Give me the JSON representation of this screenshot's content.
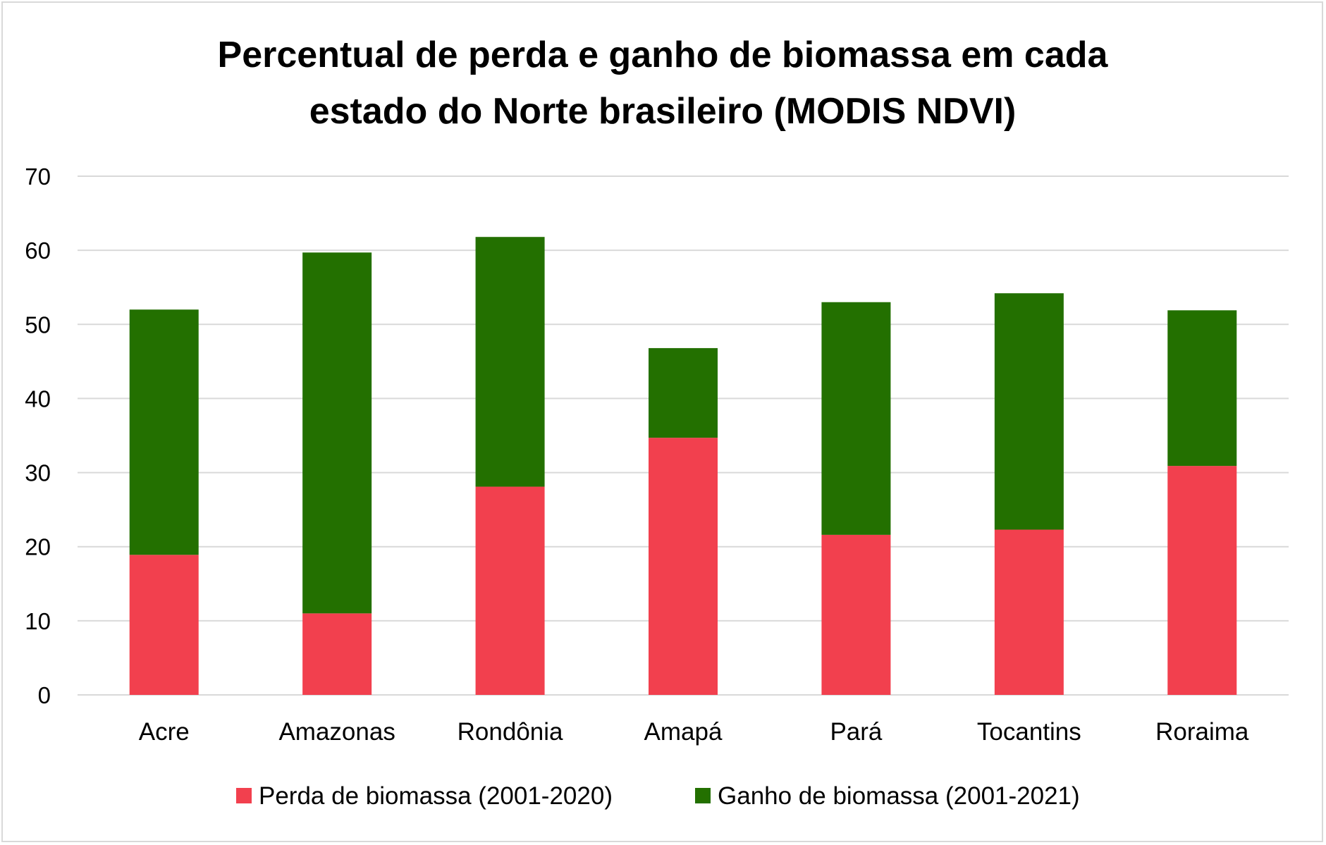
{
  "chart_data": {
    "type": "bar",
    "stacked": true,
    "title": "Percentual de perda e ganho de biomassa em cada estado do Norte brasileiro (MODIS NDVI)",
    "title_lines": [
      "Percentual de perda e ganho de biomassa em cada",
      "estado do Norte brasileiro (MODIS NDVI)"
    ],
    "categories": [
      "Acre",
      "Amazonas",
      "Rondônia",
      "Amapá",
      "Pará",
      "Tocantins",
      "Roraima"
    ],
    "series": [
      {
        "name": "Perda de biomassa (2001-2020)",
        "color": "#f2404e",
        "values": [
          18.9,
          11.0,
          28.1,
          34.7,
          21.6,
          22.3,
          30.9
        ]
      },
      {
        "name": "Ganho de biomassa (2001-2021)",
        "color": "#237000",
        "values": [
          33.1,
          48.7,
          33.7,
          12.1,
          31.4,
          31.9,
          21.0
        ]
      }
    ],
    "ylim": [
      0,
      70
    ],
    "yticks": [
      "0",
      "10",
      "20",
      "30",
      "40",
      "50",
      "60",
      "70"
    ],
    "xlabel": "",
    "ylabel": "",
    "grid": true,
    "legend_position": "bottom"
  }
}
